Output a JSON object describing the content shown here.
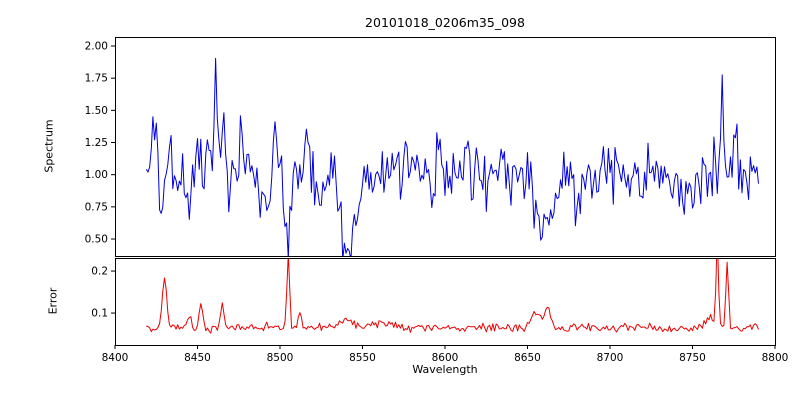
{
  "title": "20101018_0206m35_098",
  "xlabel": "Wavelength",
  "xticks": [
    {
      "v": 8400,
      "label": "8400"
    },
    {
      "v": 8450,
      "label": "8450"
    },
    {
      "v": 8500,
      "label": "8500"
    },
    {
      "v": 8550,
      "label": "8550"
    },
    {
      "v": 8600,
      "label": "8600"
    },
    {
      "v": 8650,
      "label": "8650"
    },
    {
      "v": 8700,
      "label": "8700"
    },
    {
      "v": 8750,
      "label": "8750"
    },
    {
      "v": 8800,
      "label": "8800"
    }
  ],
  "chart_data": [
    {
      "type": "line",
      "name": "spectrum",
      "ylabel": "Spectrum",
      "color": "#0000dd",
      "xlim": [
        8400,
        8800
      ],
      "ylim": [
        0.368,
        2.07
      ],
      "x_start": 8419,
      "x_end": 8790,
      "baseline": 0.98,
      "noise_std": 0.115,
      "yticks": [
        {
          "v": 0.5,
          "label": "0.50"
        },
        {
          "v": 0.75,
          "label": "0.75"
        },
        {
          "v": 1.0,
          "label": "1.00"
        },
        {
          "v": 1.25,
          "label": "1.25"
        },
        {
          "v": 1.5,
          "label": "1.50"
        },
        {
          "v": 1.75,
          "label": "1.75"
        },
        {
          "v": 2.0,
          "label": "2.00"
        }
      ],
      "features": [
        {
          "x": 8424,
          "amp": 0.4,
          "w": 1.0
        },
        {
          "x": 8428,
          "amp": -0.18,
          "w": 1.0
        },
        {
          "x": 8433,
          "amp": 0.22,
          "w": 1.0
        },
        {
          "x": 8445,
          "amp": -0.28,
          "w": 1.4
        },
        {
          "x": 8452,
          "amp": 0.25,
          "w": 1.0
        },
        {
          "x": 8457,
          "amp": 0.28,
          "w": 1.0
        },
        {
          "x": 8461,
          "amp": 0.97,
          "w": 0.9
        },
        {
          "x": 8466,
          "amp": 0.3,
          "w": 1.0
        },
        {
          "x": 8477,
          "amp": 0.33,
          "w": 1.2
        },
        {
          "x": 8483,
          "amp": 0.2,
          "w": 1.0
        },
        {
          "x": 8491,
          "amp": -0.26,
          "w": 1.4
        },
        {
          "x": 8497,
          "amp": 0.46,
          "w": 0.9
        },
        {
          "x": 8505,
          "amp": -0.5,
          "w": 1.6
        },
        {
          "x": 8516,
          "amp": 0.3,
          "w": 1.0
        },
        {
          "x": 8523,
          "amp": -0.22,
          "w": 1.2
        },
        {
          "x": 8540,
          "amp": -0.52,
          "w": 3.5
        },
        {
          "x": 8546,
          "amp": -0.25,
          "w": 2.0
        },
        {
          "x": 8576,
          "amp": 0.3,
          "w": 1.0
        },
        {
          "x": 8596,
          "amp": 0.22,
          "w": 1.0
        },
        {
          "x": 8613,
          "amp": 0.24,
          "w": 1.0
        },
        {
          "x": 8635,
          "amp": 0.25,
          "w": 1.0
        },
        {
          "x": 8657,
          "amp": -0.38,
          "w": 2.5
        },
        {
          "x": 8664,
          "amp": -0.42,
          "w": 2.5
        },
        {
          "x": 8680,
          "amp": -0.2,
          "w": 2.0
        },
        {
          "x": 8700,
          "amp": 0.22,
          "w": 1.0
        },
        {
          "x": 8745,
          "amp": -0.2,
          "w": 1.5
        },
        {
          "x": 8768,
          "amp": 0.62,
          "w": 0.9
        },
        {
          "x": 8776,
          "amp": 0.33,
          "w": 1.0
        }
      ]
    },
    {
      "type": "line",
      "name": "error",
      "ylabel": "Error",
      "color": "#ee0000",
      "xlim": [
        8400,
        8800
      ],
      "ylim": [
        0.024,
        0.231
      ],
      "x_start": 8419,
      "x_end": 8790,
      "baseline": 0.065,
      "noise_std": 0.005,
      "yticks": [
        {
          "v": 0.1,
          "label": "0.1"
        },
        {
          "v": 0.2,
          "label": "0.2"
        }
      ],
      "features": [
        {
          "x": 8430,
          "amp": 0.115,
          "w": 1.4
        },
        {
          "x": 8445,
          "amp": 0.035,
          "w": 1.2
        },
        {
          "x": 8452,
          "amp": 0.06,
          "w": 1.0
        },
        {
          "x": 8465,
          "amp": 0.06,
          "w": 1.0
        },
        {
          "x": 8505,
          "amp": 0.175,
          "w": 0.8
        },
        {
          "x": 8512,
          "amp": 0.03,
          "w": 1.0
        },
        {
          "x": 8540,
          "amp": 0.022,
          "w": 4.0
        },
        {
          "x": 8562,
          "amp": 0.012,
          "w": 5.0
        },
        {
          "x": 8655,
          "amp": 0.035,
          "w": 2.5
        },
        {
          "x": 8662,
          "amp": 0.045,
          "w": 2.0
        },
        {
          "x": 8760,
          "amp": 0.03,
          "w": 2.0
        },
        {
          "x": 8765,
          "amp": 0.21,
          "w": 0.7
        },
        {
          "x": 8771,
          "amp": 0.15,
          "w": 0.8
        }
      ]
    }
  ]
}
